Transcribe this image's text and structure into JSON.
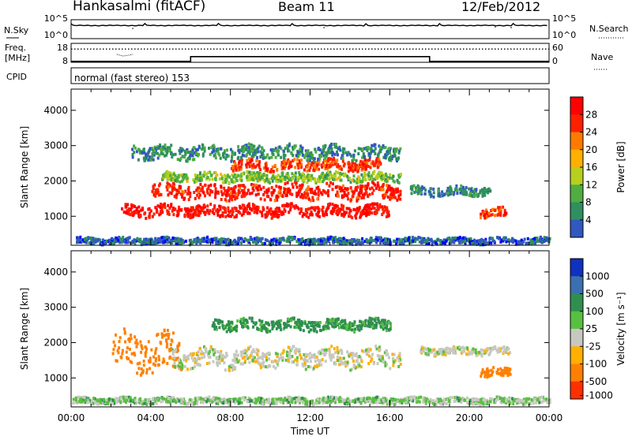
{
  "header": {
    "station": "Hankasalmi (fitACF)",
    "beam": "Beam 11",
    "date": "12/Feb/2012"
  },
  "strip_labels": {
    "nsky": "N.Sky",
    "nsky_ticks": [
      "10^5",
      "10^0"
    ],
    "nsearch": "N.Search",
    "nsearch_ticks": [
      "10^5",
      "10^0"
    ],
    "freq_line1": "Freq.",
    "freq_line2": "[MHz]",
    "freq_ticks": [
      "18",
      "8"
    ],
    "nave": "Nave",
    "nave_ticks": [
      "60",
      "0"
    ],
    "cpid": "CPID",
    "cpid_text": "normal (fast stereo) 153"
  },
  "colors": {
    "power_scale": [
      "#0000ff",
      "#3058c0",
      "#2f8f5f",
      "#4fae3f",
      "#b7cf1d",
      "#ffb000",
      "#ff7a00",
      "#ff2000",
      "#ff0000"
    ],
    "velocity_scale": [
      "#1030c0",
      "#3a6fb0",
      "#2f8f4f",
      "#58c040",
      "#c8c8c0",
      "#ffb000",
      "#ff8000",
      "#ff3000",
      "#ff0000"
    ],
    "velocity_gray": "#c8c8c0"
  },
  "chart_data": [
    {
      "type": "line",
      "name": "sky-noise",
      "ylabel": "N.Sky",
      "yscale": "log",
      "ylim": [
        1,
        100000
      ],
      "x": [
        0,
        1,
        2,
        3,
        4,
        5,
        6,
        7,
        8,
        9,
        10,
        11,
        12,
        13,
        14,
        15,
        16,
        17,
        18,
        19,
        20,
        21,
        22,
        23,
        24
      ],
      "values": [
        3000,
        3100,
        3000,
        3200,
        3000,
        3000,
        3100,
        3000,
        3000,
        3100,
        3000,
        3000,
        3100,
        3000,
        3000,
        3100,
        3000,
        3000,
        3100,
        3000,
        3000,
        3100,
        3000,
        3000,
        3000
      ]
    },
    {
      "type": "line",
      "name": "frequency-nave",
      "ylabel": "Freq. [MHz]",
      "ylim": [
        8,
        18
      ],
      "y2label": "Nave",
      "y2lim": [
        0,
        60
      ],
      "series": [
        {
          "values_x": [
            0,
            6,
            6,
            18,
            18,
            24
          ],
          "values": [
            8.5,
            8.5,
            11,
            11,
            8.5,
            8.5
          ]
        },
        {
          "values_x": [
            0,
            24
          ],
          "values": [
            15,
            15
          ]
        }
      ]
    },
    {
      "type": "heatmap",
      "name": "power",
      "xlabel": "Time UT",
      "ylabel": "Slant Range [km]",
      "xlim": [
        0,
        24
      ],
      "ylim": [
        180,
        4600
      ],
      "ytick_labels": [
        "1000",
        "2000",
        "3000",
        "4000"
      ],
      "colorbar_label": "Power [dB]",
      "colorbar_ticks": [
        "4",
        "8",
        "12",
        "16",
        "20",
        "24",
        "28"
      ],
      "colorbar_lim": [
        0,
        32
      ],
      "regions": [
        {
          "t0": 2.4,
          "t1": 16.0,
          "r": 1150,
          "w": 150,
          "v": 29
        },
        {
          "t0": 4.0,
          "t1": 16.5,
          "r": 1700,
          "w": 200,
          "v": 28
        },
        {
          "t0": 8.0,
          "t1": 15.5,
          "r": 2450,
          "w": 140,
          "v": 26
        },
        {
          "t0": 4.5,
          "t1": 16.5,
          "r": 2100,
          "w": 120,
          "v": 14
        },
        {
          "t0": 3.0,
          "t1": 16.5,
          "r": 2800,
          "w": 180,
          "v": 9
        },
        {
          "t0": 20.5,
          "t1": 21.8,
          "r": 1100,
          "w": 120,
          "v": 26
        },
        {
          "t0": 17.0,
          "t1": 21.0,
          "r": 1700,
          "w": 120,
          "v": 8
        },
        {
          "t0": 0.2,
          "t1": 24.0,
          "r": 300,
          "w": 80,
          "v": 6
        }
      ]
    },
    {
      "type": "heatmap",
      "name": "velocity",
      "xlabel": "Time UT",
      "ylabel": "Slant Range [km]",
      "xlim": [
        0,
        24
      ],
      "ylim": [
        180,
        4600
      ],
      "xtick_labels": [
        "00:00",
        "04:00",
        "08:00",
        "12:00",
        "16:00",
        "20:00",
        "00:00"
      ],
      "ytick_labels": [
        "1000",
        "2000",
        "3000",
        "4000"
      ],
      "colorbar_label": "Velocity [m s⁻¹]",
      "colorbar_ticks": [
        "1000",
        "500",
        "100",
        "25",
        "-25",
        "-100",
        "-500",
        "-1000"
      ],
      "regions": [
        {
          "t0": 2.0,
          "t1": 5.5,
          "r": 1700,
          "w": 500,
          "v": -150
        },
        {
          "t0": 5.0,
          "t1": 16.5,
          "r": 1550,
          "w": 250,
          "v": 0
        },
        {
          "t0": 7.0,
          "t1": 16.0,
          "r": 2500,
          "w": 150,
          "v": 80
        },
        {
          "t0": 17.5,
          "t1": 22.0,
          "r": 1750,
          "w": 100,
          "v": 0
        },
        {
          "t0": 0.0,
          "t1": 24.0,
          "r": 350,
          "w": 80,
          "v": 30
        },
        {
          "t0": 20.5,
          "t1": 22.0,
          "r": 1150,
          "w": 120,
          "v": -200
        }
      ]
    }
  ]
}
